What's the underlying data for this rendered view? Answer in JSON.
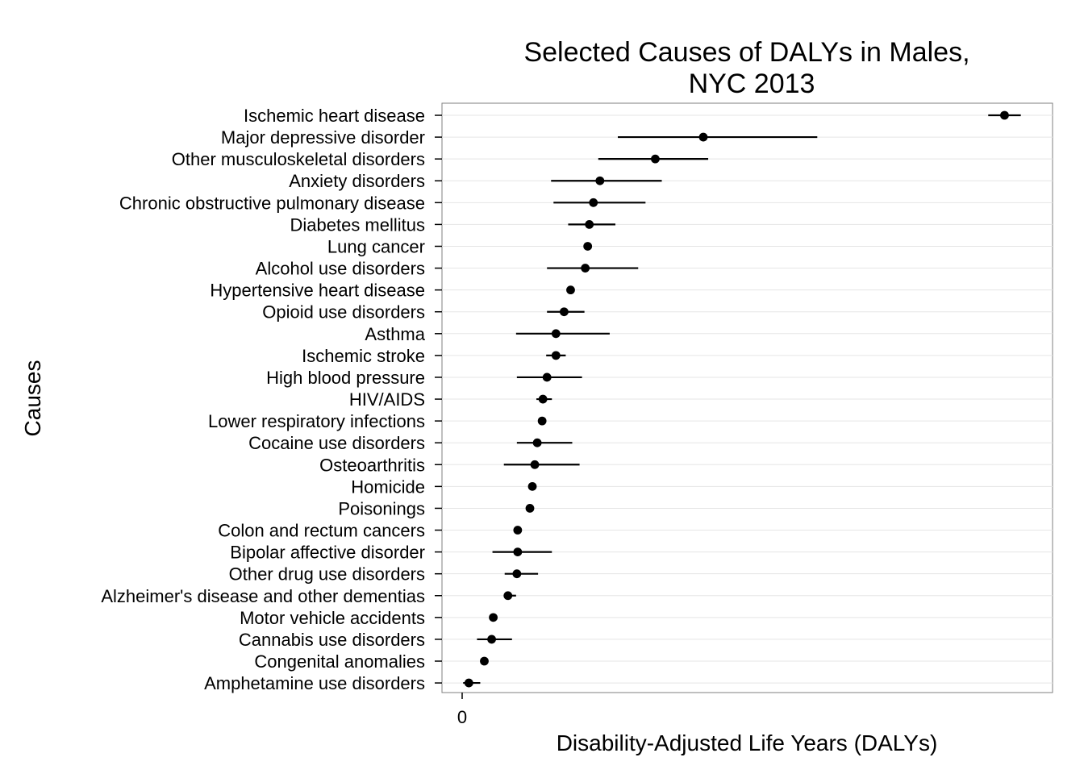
{
  "chart_data": {
    "type": "scatter",
    "title_line1": "Selected Causes of DALYs in Males,",
    "title_line2": "NYC 2013",
    "xlabel": "Disability-Adjusted Life Years (DALYs)",
    "ylabel": "Causes",
    "x_ticks": [
      "0"
    ],
    "xlim": [
      -1.5,
      73.5
    ],
    "grid": true,
    "categories": [
      "Ischemic heart disease",
      "Major depressive disorder",
      "Other musculoskeletal disorders",
      "Anxiety disorders",
      "Chronic obstructive pulmonary disease",
      "Diabetes mellitus",
      "Lung cancer",
      "Alcohol use disorders",
      "Hypertensive heart disease",
      "Opioid use disorders",
      "Asthma",
      "Ischemic stroke",
      "High blood pressure",
      "HIV/AIDS",
      "Lower respiratory infections",
      "Cocaine use disorders",
      "Osteoarthritis",
      "Homicide",
      "Poisonings",
      "Colon and rectum cancers",
      "Bipolar affective disorder",
      "Other drug use disorders",
      "Alzheimer's disease and other dementias",
      "Motor vehicle accidents",
      "Cannabis use disorders",
      "Congenital anomalies",
      "Amphetamine use disorders"
    ],
    "series": [
      {
        "values": [
          67.6,
          30.6,
          24.7,
          17.9,
          17.1,
          16.6,
          16.4,
          16.1,
          14.3,
          13.5,
          12.5,
          12.5,
          11.4,
          10.9,
          10.8,
          10.2,
          9.9,
          9.6,
          9.3,
          7.8,
          7.8,
          7.7,
          6.6,
          4.8,
          4.6,
          3.7,
          1.8
        ],
        "lower": [
          65.6,
          20.1,
          17.7,
          11.9,
          12.2,
          14.0,
          16.4,
          11.4,
          14.3,
          11.4,
          7.6,
          11.3,
          7.7,
          10.1,
          10.8,
          7.7,
          6.1,
          9.6,
          9.3,
          7.8,
          4.7,
          6.2,
          6.1,
          4.8,
          2.8,
          3.7,
          1.1
        ],
        "upper": [
          69.6,
          44.6,
          31.2,
          25.5,
          23.5,
          19.8,
          16.4,
          22.6,
          14.3,
          16.0,
          19.1,
          13.7,
          15.7,
          12.0,
          10.8,
          14.5,
          15.4,
          9.6,
          9.3,
          7.8,
          12.0,
          10.3,
          7.6,
          4.8,
          7.1,
          3.7,
          3.2
        ]
      }
    ]
  }
}
